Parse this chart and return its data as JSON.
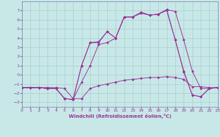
{
  "xlabel": "Windchill (Refroidissement éolien,°C)",
  "bg_color": "#c8e8e8",
  "grid_color": "#a8cccc",
  "line_color": "#993399",
  "spine_color": "#7777aa",
  "xlim": [
    0,
    23
  ],
  "ylim": [
    -3.5,
    8
  ],
  "xticks": [
    0,
    1,
    2,
    3,
    4,
    5,
    6,
    7,
    8,
    9,
    10,
    11,
    12,
    13,
    14,
    15,
    16,
    17,
    18,
    19,
    20,
    21,
    22,
    23
  ],
  "yticks": [
    -3,
    -2,
    -1,
    0,
    1,
    2,
    3,
    4,
    5,
    6,
    7
  ],
  "curves": [
    {
      "x": [
        0,
        1,
        2,
        3,
        4,
        5,
        6,
        7,
        8,
        9,
        10,
        11,
        12,
        13,
        14,
        15,
        16,
        17,
        18,
        19,
        20,
        21,
        22,
        23
      ],
      "y": [
        -1.4,
        -1.4,
        -1.4,
        -1.4,
        -1.4,
        -1.5,
        -2.6,
        -2.6,
        -1.5,
        -1.2,
        -1.0,
        -0.8,
        -0.6,
        -0.5,
        -0.4,
        -0.3,
        -0.3,
        -0.2,
        -0.3,
        -0.5,
        -1.3,
        -1.3,
        -1.4,
        -1.4
      ]
    },
    {
      "x": [
        0,
        1,
        2,
        3,
        4,
        5,
        6,
        7,
        8,
        9,
        10,
        11,
        12,
        13,
        14,
        15,
        16,
        17,
        18,
        19,
        20,
        21,
        22,
        23
      ],
      "y": [
        -1.4,
        -1.4,
        -1.4,
        -1.5,
        -1.5,
        -2.6,
        -2.7,
        1.0,
        3.5,
        3.5,
        4.7,
        4.0,
        6.3,
        6.3,
        6.8,
        6.5,
        6.6,
        7.1,
        6.9,
        3.8,
        0.4,
        -1.5,
        -1.5,
        -1.4
      ]
    },
    {
      "x": [
        0,
        1,
        2,
        3,
        4,
        5,
        6,
        7,
        8,
        9,
        10,
        11,
        12,
        13,
        14,
        15,
        16,
        17,
        18,
        19,
        20,
        21,
        22,
        23
      ],
      "y": [
        -1.4,
        -1.4,
        -1.4,
        -1.5,
        -1.5,
        -2.6,
        -2.7,
        1.0,
        3.5,
        3.6,
        4.7,
        4.0,
        6.3,
        6.3,
        6.8,
        6.5,
        6.6,
        7.1,
        3.8,
        0.4,
        -2.2,
        -2.4,
        -1.5,
        -1.4
      ]
    },
    {
      "x": [
        0,
        1,
        2,
        3,
        4,
        5,
        6,
        7,
        8,
        9,
        10,
        11,
        12,
        13,
        14,
        15,
        16,
        17,
        18,
        19,
        20,
        21,
        22,
        23
      ],
      "y": [
        -1.4,
        -1.4,
        -1.4,
        -1.5,
        -1.5,
        -2.6,
        -2.7,
        -0.8,
        1.0,
        3.3,
        3.5,
        4.0,
        6.3,
        6.3,
        6.7,
        6.5,
        6.6,
        7.0,
        3.8,
        0.3,
        -2.2,
        -2.4,
        -1.5,
        -1.4
      ]
    }
  ]
}
